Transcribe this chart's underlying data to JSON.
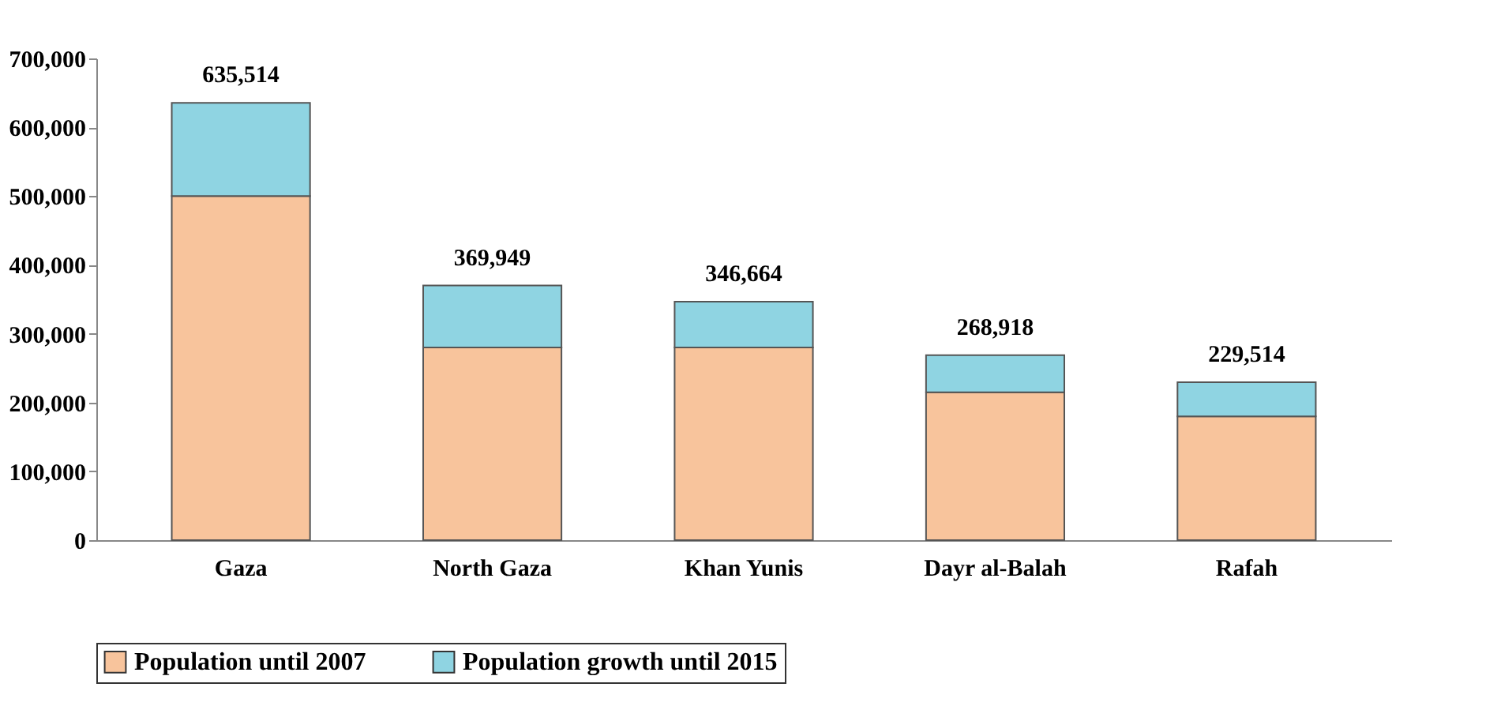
{
  "chart_data": {
    "type": "bar",
    "stacked": true,
    "categories": [
      "Gaza",
      "North Gaza",
      "Khan Yunis",
      "Dayr al-Balah",
      "Rafah"
    ],
    "series": [
      {
        "name": "Population until 2007",
        "color": "#f8c49c",
        "values": [
          500000,
          280000,
          280000,
          215000,
          180000
        ]
      },
      {
        "name": "Population growth until 2015",
        "color": "#8fd4e2",
        "values": [
          135514,
          89949,
          66664,
          53918,
          49514
        ]
      }
    ],
    "totals": [
      "635,514",
      "369,949",
      "346,664",
      "268,918",
      "229,514"
    ],
    "ylim": [
      0,
      700000
    ],
    "yticks": [
      {
        "value": 0,
        "label": "0"
      },
      {
        "value": 100000,
        "label": "100,000"
      },
      {
        "value": 200000,
        "label": "200,000"
      },
      {
        "value": 300000,
        "label": "300,000"
      },
      {
        "value": 400000,
        "label": "400,000"
      },
      {
        "value": 500000,
        "label": "500,000"
      },
      {
        "value": 600000,
        "label": "600,000"
      },
      {
        "value": 700000,
        "label": "700,000"
      }
    ],
    "grid": false,
    "legend": "bottom"
  }
}
